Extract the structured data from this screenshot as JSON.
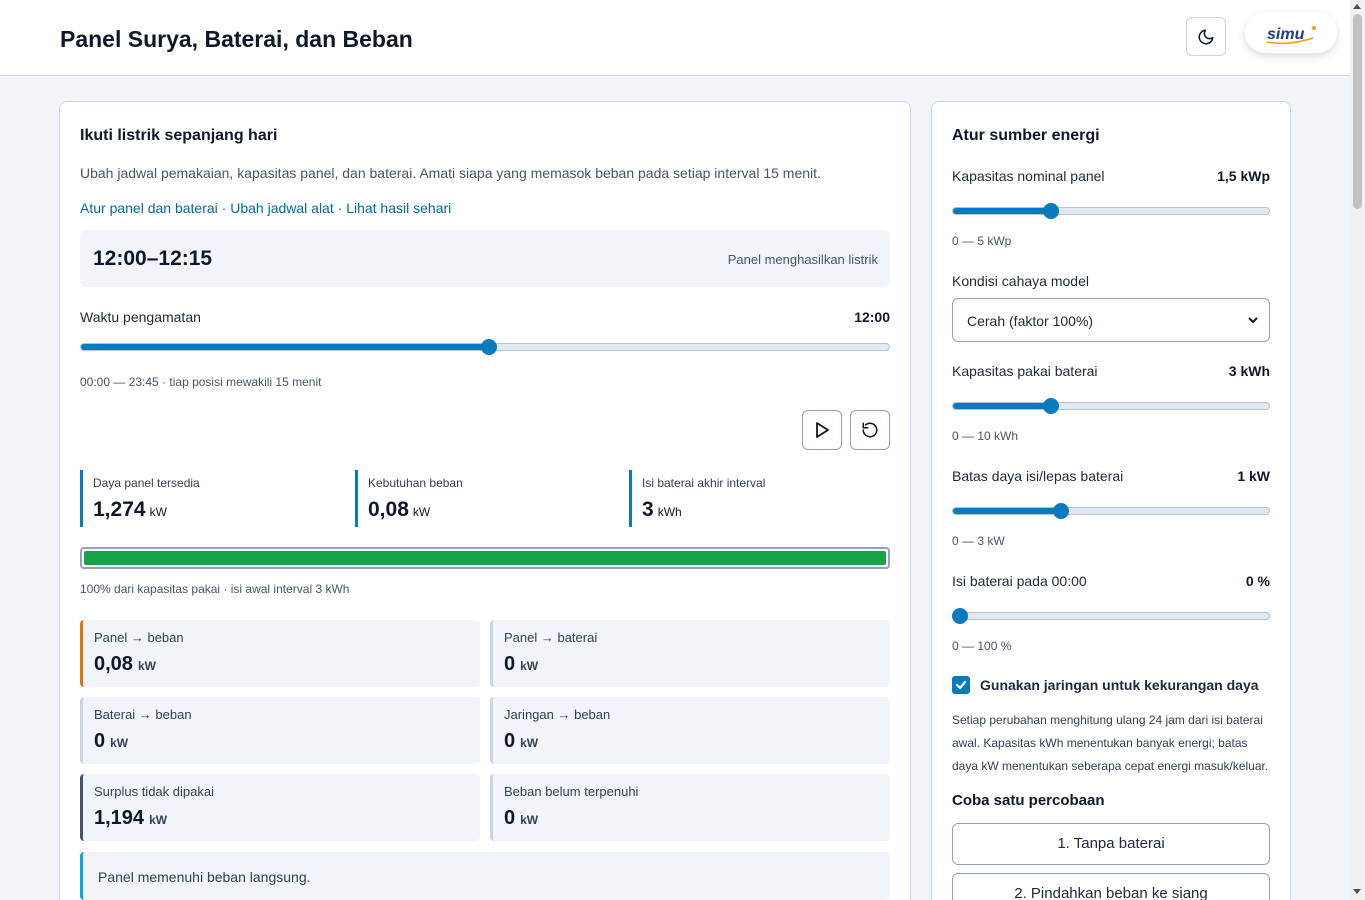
{
  "header": {
    "title": "Panel Surya, Baterai, dan Beban",
    "logo_text": "simu"
  },
  "main": {
    "title": "Ikuti listrik sepanjang hari",
    "description": "Ubah jadwal pemakaian, kapasitas panel, dan baterai. Amati siapa yang memasok beban pada setiap interval 15 menit.",
    "links": [
      "Atur panel dan baterai",
      "Ubah jadwal alat",
      "Lihat hasil sehari"
    ],
    "link_separator": " · ",
    "interval": "12:00–12:15",
    "interval_status": "Panel menghasilkan listrik",
    "observation_label": "Waktu pengamatan",
    "observation_value": "12:00",
    "observation_fraction": 0.505,
    "observation_range": "00:00 — 23:45 · tiap posisi mewakili 15 menit",
    "stats": [
      {
        "label": "Daya panel tersedia",
        "value": "1,274",
        "unit": "kW"
      },
      {
        "label": "Kebutuhan beban",
        "value": "0,08",
        "unit": "kW"
      },
      {
        "label": "Isi baterai akhir interval",
        "value": "3",
        "unit": "kWh"
      }
    ],
    "battery_fill_percent": 100,
    "battery_caption": "100% dari kapasitas pakai · isi awal interval 3 kWh",
    "flows": [
      {
        "label": "Panel → beban",
        "value": "0,08",
        "unit": "kW",
        "accent": "#d97706"
      },
      {
        "label": "Panel → baterai",
        "value": "0",
        "unit": "kW",
        "accent": "#cbd5e1"
      },
      {
        "label": "Baterai → beban",
        "value": "0",
        "unit": "kW",
        "accent": "#cbd5e1"
      },
      {
        "label": "Jaringan → beban",
        "value": "0",
        "unit": "kW",
        "accent": "#cbd5e1"
      },
      {
        "label": "Surplus tidak dipakai",
        "value": "1,194",
        "unit": "kW",
        "accent": "#475569"
      },
      {
        "label": "Beban belum terpenuhi",
        "value": "0",
        "unit": "kW",
        "accent": "#cbd5e1"
      }
    ],
    "note": "Panel memenuhi beban langsung."
  },
  "side": {
    "title": "Atur sumber energi",
    "panel_label": "Kapasitas nominal panel",
    "panel_value": "1,5 kWp",
    "panel_fraction": 0.3,
    "panel_range": "0 — 5 kWp",
    "light_label": "Kondisi cahaya model",
    "light_selected": "Cerah (faktor 100%)",
    "battery_cap_label": "Kapasitas pakai baterai",
    "battery_cap_value": "3 kWh",
    "battery_cap_fraction": 0.3,
    "battery_cap_range": "0 — 10 kWh",
    "power_limit_label": "Batas daya isi/lepas baterai",
    "power_limit_value": "1 kW",
    "power_limit_fraction": 0.333,
    "power_limit_range": "0 — 3 kW",
    "initial_soc_label": "Isi baterai pada 00:00",
    "initial_soc_value": "0 %",
    "initial_soc_fraction": 0,
    "initial_soc_range": "0 — 100 %",
    "grid_checkbox_label": "Gunakan jaringan untuk kekurangan daya",
    "grid_checked": true,
    "explanation": "Setiap perubahan menghitung ulang 24 jam dari isi baterai awal. Kapasitas kWh menentukan banyak energi; batas daya kW menentukan seberapa cepat energi masuk/keluar.",
    "experiment_title": "Coba satu percobaan",
    "experiments": [
      "1. Tanpa baterai",
      "2. Pindahkan beban ke siang"
    ]
  },
  "colors": {
    "accent": "#0a7abf",
    "battery": "#16a34a",
    "note_accent": "#0ea5e9"
  },
  "icons": {
    "theme": "moon-icon",
    "play": "play-icon",
    "reset": "reset-icon"
  }
}
